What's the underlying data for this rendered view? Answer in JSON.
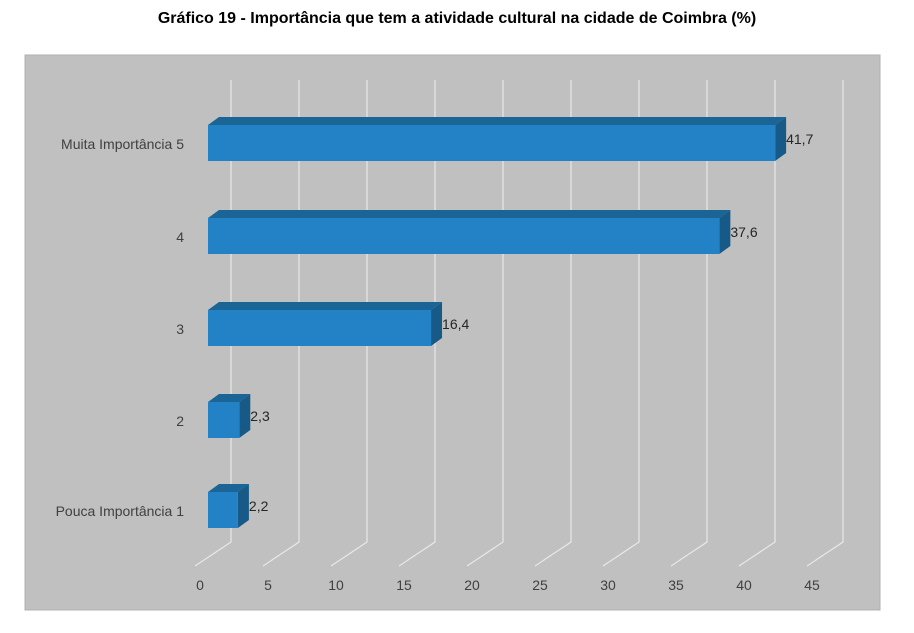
{
  "chart_data": {
    "type": "bar",
    "orientation": "horizontal",
    "title": "Gráfico 19 - Importância que tem a atividade cultural na cidade de Coimbra (%)",
    "categories": [
      "Muita Importância 5",
      "4",
      "3",
      "2",
      "Pouca Importância 1"
    ],
    "values": [
      41.7,
      37.6,
      16.4,
      2.3,
      2.2
    ],
    "data_labels": [
      "41,7",
      "37,6",
      "16,4",
      "2,3",
      "2,2"
    ],
    "x_ticks": [
      "0",
      "5",
      "10",
      "15",
      "20",
      "25",
      "30",
      "35",
      "40",
      "45"
    ],
    "xlim": [
      0,
      45
    ],
    "grid": true,
    "colors": {
      "bar_front": "#2382C6",
      "bar_top": "#1B6596",
      "bar_side": "#175A88",
      "plot_background": "#C0C0C0",
      "gridline": "#E8E8E8"
    }
  }
}
